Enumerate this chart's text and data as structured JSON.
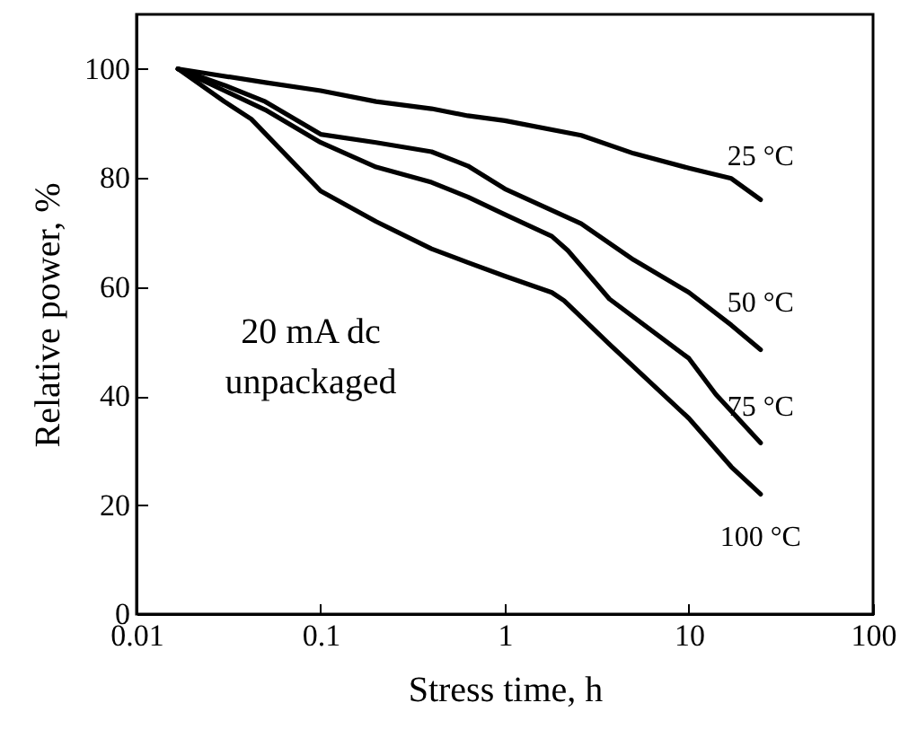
{
  "chart_data": {
    "type": "line",
    "xlabel": "Stress time, h",
    "ylabel": "Relative power, %",
    "log": "x",
    "xlim": [
      0.01,
      100
    ],
    "xticks": [
      0.01,
      0.1,
      1,
      10,
      100
    ],
    "ylim": [
      0,
      110
    ],
    "yticks": [
      0,
      20,
      40,
      60,
      80,
      100
    ],
    "grid": false,
    "marker": "none",
    "line_style": "solid",
    "annotations": [
      "20 mA dc",
      "unpackaged"
    ],
    "series": [
      {
        "name": "25 °C",
        "color": "#000000",
        "x": [
          0.0168,
          0.05,
          0.1,
          0.2,
          0.4,
          0.63,
          1,
          2.6,
          5,
          10,
          17,
          24.5
        ],
        "values": [
          100,
          97.5,
          96,
          94,
          92.7,
          91.4,
          90.5,
          87.8,
          84.5,
          81.8,
          79.9,
          76
        ]
      },
      {
        "name": "50 °C",
        "color": "#000000",
        "x": [
          0.0168,
          0.03,
          0.05,
          0.1,
          0.2,
          0.4,
          0.63,
          1,
          2.6,
          5,
          10,
          17,
          24.5
        ],
        "values": [
          100,
          97,
          94,
          88,
          86.5,
          84.8,
          82.2,
          78,
          71.6,
          65,
          59,
          53,
          48.5
        ]
      },
      {
        "name": "75 °C",
        "color": "#000000",
        "x": [
          0.0168,
          0.03,
          0.05,
          0.1,
          0.2,
          0.4,
          0.63,
          1,
          1.8,
          2.2,
          3.7,
          10,
          14,
          24.5
        ],
        "values": [
          100,
          96,
          92.5,
          86.5,
          82,
          79.2,
          76.5,
          73.3,
          69.3,
          66.7,
          57.8,
          46.9,
          40.3,
          31.4
        ]
      },
      {
        "name": "100 °C",
        "color": "#000000",
        "x": [
          0.0168,
          0.03,
          0.042,
          0.1,
          0.2,
          0.4,
          0.63,
          1,
          1.8,
          2.1,
          3.7,
          10,
          17,
          24.5
        ],
        "values": [
          100,
          94,
          90.8,
          77.6,
          72,
          67,
          64.5,
          62,
          59,
          57.5,
          49.5,
          35.9,
          27,
          22
        ]
      }
    ]
  }
}
